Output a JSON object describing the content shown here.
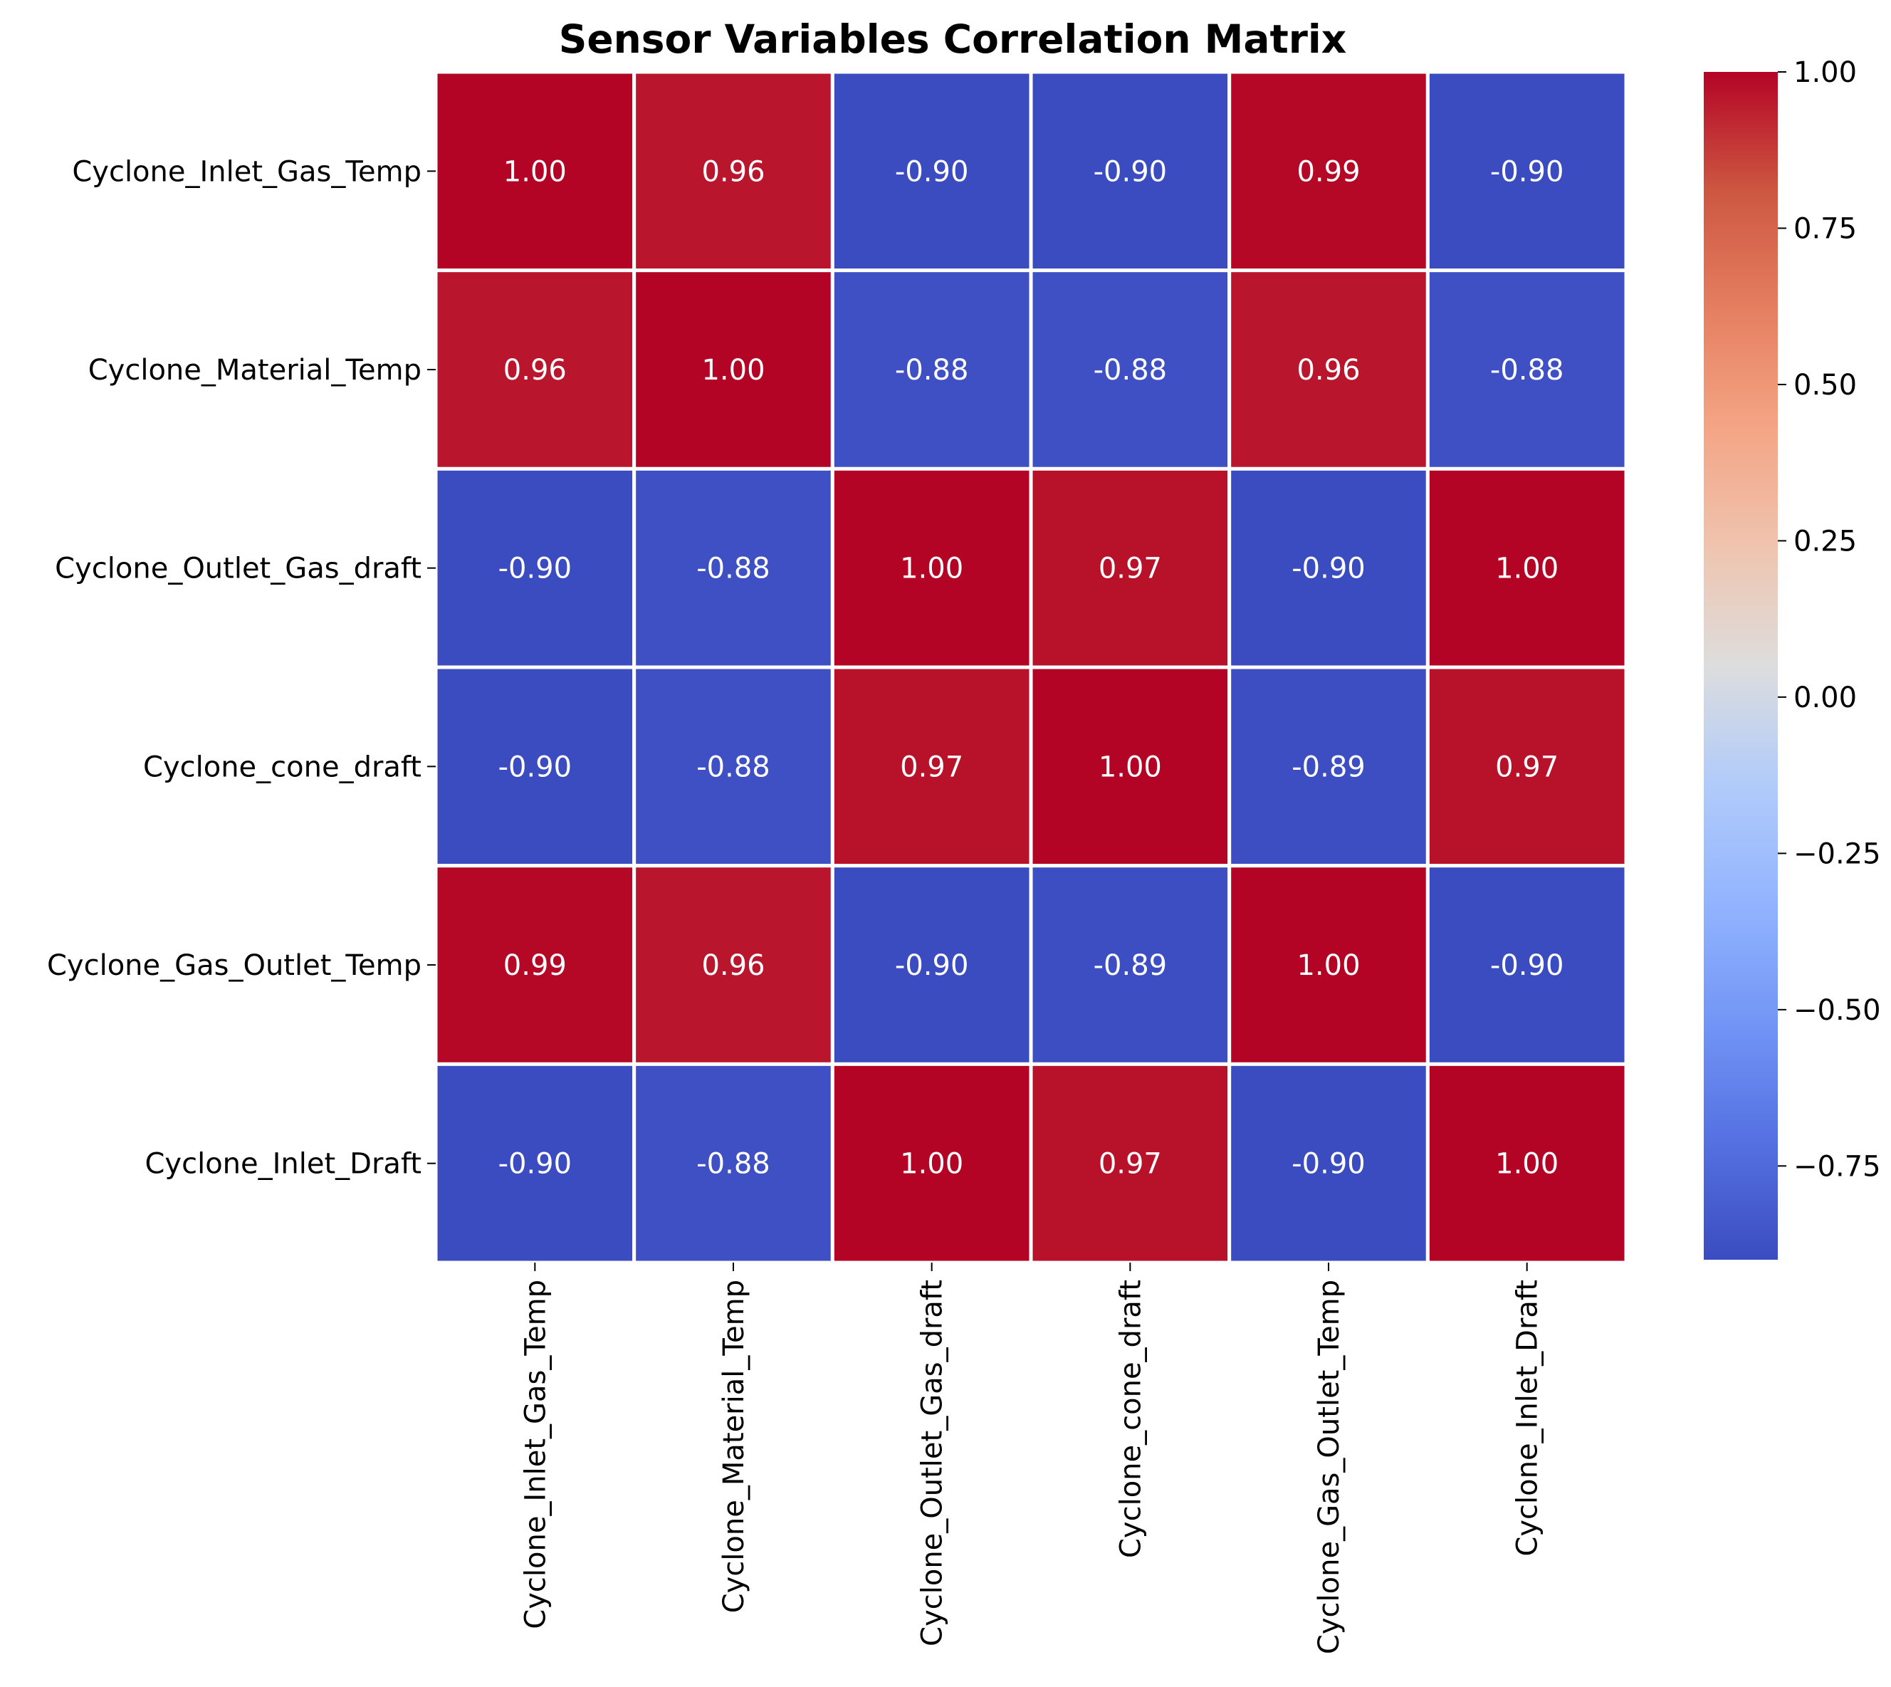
{
  "chart_data": {
    "type": "heatmap",
    "title": "Sensor Variables Correlation Matrix",
    "row_labels": [
      "Cyclone_Inlet_Gas_Temp",
      "Cyclone_Material_Temp",
      "Cyclone_Outlet_Gas_draft",
      "Cyclone_cone_draft",
      "Cyclone_Gas_Outlet_Temp",
      "Cyclone_Inlet_Draft"
    ],
    "col_labels": [
      "Cyclone_Inlet_Gas_Temp",
      "Cyclone_Material_Temp",
      "Cyclone_Outlet_Gas_draft",
      "Cyclone_cone_draft",
      "Cyclone_Gas_Outlet_Temp",
      "Cyclone_Inlet_Draft"
    ],
    "values": [
      [
        1.0,
        0.96,
        -0.9,
        -0.9,
        0.99,
        -0.9
      ],
      [
        0.96,
        1.0,
        -0.88,
        -0.88,
        0.96,
        -0.88
      ],
      [
        -0.9,
        -0.88,
        1.0,
        0.97,
        -0.9,
        1.0
      ],
      [
        -0.9,
        -0.88,
        0.97,
        1.0,
        -0.89,
        0.97
      ],
      [
        0.99,
        0.96,
        -0.9,
        -0.89,
        1.0,
        -0.9
      ],
      [
        -0.9,
        -0.88,
        1.0,
        0.97,
        -0.9,
        1.0
      ]
    ],
    "value_format": "2 decimals",
    "colormap": "coolwarm",
    "color_range": [
      -0.9,
      1.0
    ],
    "colorbar": {
      "ticks": [
        1.0,
        0.75,
        0.5,
        0.25,
        0.0,
        -0.25,
        -0.5,
        -0.75
      ],
      "tick_labels": [
        "1.00",
        "0.75",
        "0.50",
        "0.25",
        "0.00",
        "−0.25",
        "−0.50",
        "−0.75"
      ]
    },
    "cell_border_color": "#ffffff",
    "grid": false
  }
}
